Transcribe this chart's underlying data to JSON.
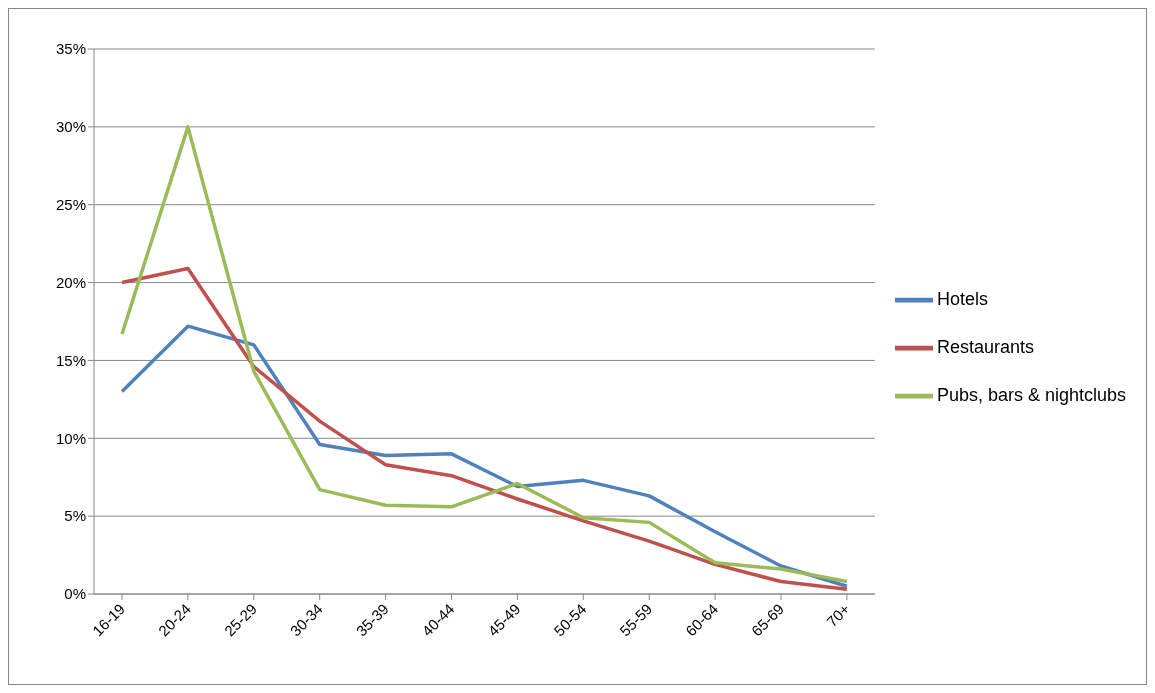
{
  "chart_data": {
    "type": "line",
    "categories": [
      "16-19",
      "20-24",
      "25-29",
      "30-34",
      "35-39",
      "40-44",
      "45-49",
      "50-54",
      "55-59",
      "60-64",
      "65-69",
      "70+"
    ],
    "series": [
      {
        "name": "Hotels",
        "color": "#4f81bd",
        "values": [
          13.0,
          17.2,
          16.0,
          9.6,
          8.9,
          9.0,
          6.9,
          7.3,
          6.3,
          4.0,
          1.8,
          0.5
        ]
      },
      {
        "name": "Restaurants",
        "color": "#c0504d",
        "values": [
          20.0,
          20.9,
          14.6,
          11.1,
          8.3,
          7.6,
          6.1,
          4.7,
          3.4,
          1.9,
          0.8,
          0.3
        ]
      },
      {
        "name": "Pubs, bars & nightclubs",
        "color": "#9bbb59",
        "values": [
          16.7,
          30.0,
          14.3,
          6.7,
          5.7,
          5.6,
          7.1,
          4.9,
          4.6,
          2.0,
          1.6,
          0.8
        ]
      }
    ],
    "ylim": [
      0,
      35
    ],
    "yticks": [
      {
        "value": 0,
        "label": "0%"
      },
      {
        "value": 5,
        "label": "5%"
      },
      {
        "value": 10,
        "label": "10%"
      },
      {
        "value": 15,
        "label": "15%"
      },
      {
        "value": 20,
        "label": "20%"
      },
      {
        "value": 25,
        "label": "25%"
      },
      {
        "value": 30,
        "label": "30%"
      },
      {
        "value": 35,
        "label": "35%"
      }
    ],
    "grid": "y",
    "legend": "right",
    "marker": "none",
    "line_style": "solid"
  }
}
